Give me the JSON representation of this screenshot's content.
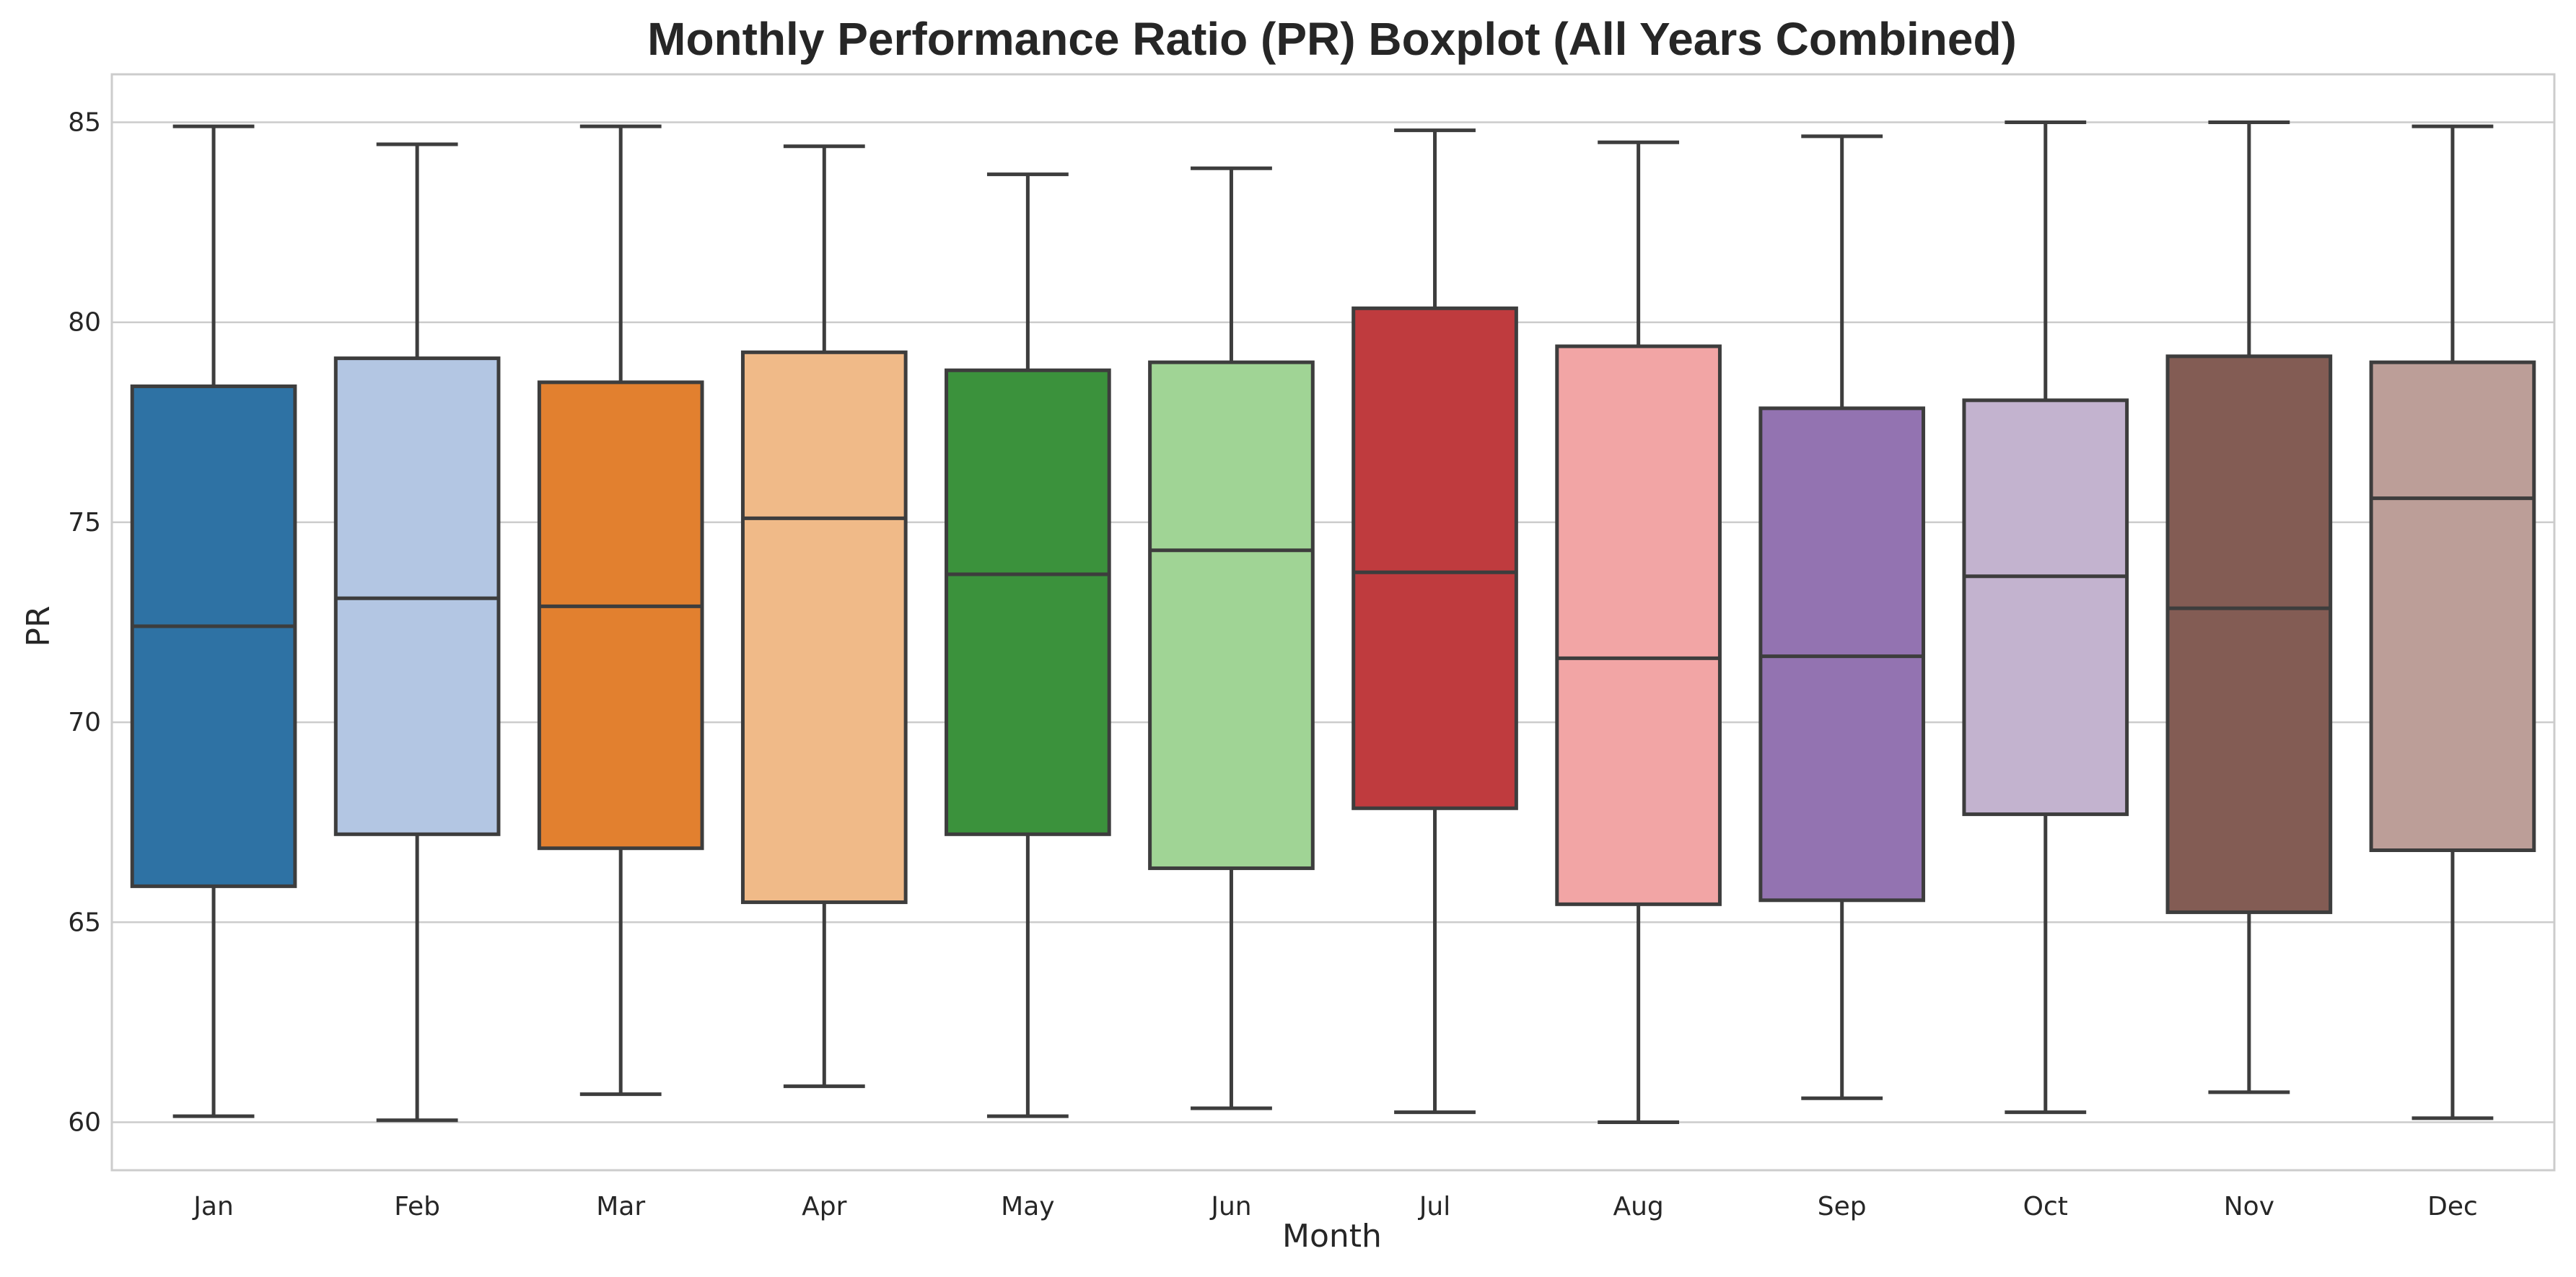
{
  "chart_data": {
    "type": "boxplot",
    "title": "Monthly Performance Ratio (PR) Boxplot (All Years Combined)",
    "xlabel": "Month",
    "ylabel": "PR",
    "ylim": [
      58.8,
      86.2
    ],
    "yticks": [
      60,
      65,
      70,
      75,
      80,
      85
    ],
    "grid": true,
    "categories": [
      "Jan",
      "Feb",
      "Mar",
      "Apr",
      "May",
      "Jun",
      "Jul",
      "Aug",
      "Sep",
      "Oct",
      "Nov",
      "Dec"
    ],
    "boxes": [
      {
        "whisker_low": 60.15,
        "q1": 65.9,
        "median": 72.4,
        "q3": 78.4,
        "whisker_high": 84.9,
        "color": "#2e72a4"
      },
      {
        "whisker_low": 60.05,
        "q1": 67.2,
        "median": 73.1,
        "q3": 79.1,
        "whisker_high": 84.45,
        "color": "#b3c6e3"
      },
      {
        "whisker_low": 60.7,
        "q1": 66.85,
        "median": 72.9,
        "q3": 78.5,
        "whisker_high": 84.9,
        "color": "#e2802f"
      },
      {
        "whisker_low": 60.9,
        "q1": 65.5,
        "median": 75.1,
        "q3": 79.25,
        "whisker_high": 84.4,
        "color": "#f0ba88"
      },
      {
        "whisker_low": 60.15,
        "q1": 67.2,
        "median": 73.7,
        "q3": 78.8,
        "whisker_high": 83.7,
        "color": "#3b923c"
      },
      {
        "whisker_low": 60.35,
        "q1": 66.35,
        "median": 74.3,
        "q3": 79.0,
        "whisker_high": 83.85,
        "color": "#a0d495"
      },
      {
        "whisker_low": 60.25,
        "q1": 67.85,
        "median": 73.75,
        "q3": 80.35,
        "whisker_high": 84.8,
        "color": "#bf3b3e"
      },
      {
        "whisker_low": 60.0,
        "q1": 65.45,
        "median": 71.6,
        "q3": 79.4,
        "whisker_high": 84.5,
        "color": "#f2a5a5"
      },
      {
        "whisker_low": 60.6,
        "q1": 65.55,
        "median": 71.65,
        "q3": 77.85,
        "whisker_high": 84.65,
        "color": "#9373b1"
      },
      {
        "whisker_low": 60.25,
        "q1": 67.7,
        "median": 73.65,
        "q3": 78.05,
        "whisker_high": 85.0,
        "color": "#c3b3cf"
      },
      {
        "whisker_low": 60.75,
        "q1": 65.25,
        "median": 72.85,
        "q3": 79.15,
        "whisker_high": 85.0,
        "color": "#835c54"
      },
      {
        "whisker_low": 60.1,
        "q1": 66.8,
        "median": 75.6,
        "q3": 79.0,
        "whisker_high": 84.9,
        "color": "#bc9e98"
      }
    ]
  }
}
